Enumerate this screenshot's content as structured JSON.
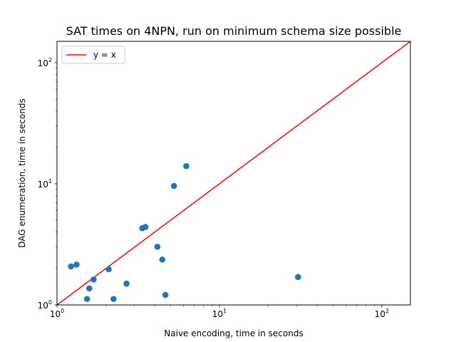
{
  "chart_data": {
    "type": "scatter",
    "title": "SAT times on 4NPN, run on minimum schema size possible",
    "xlabel": "Naive encoding, time in seconds",
    "ylabel": "DAG enumeration, time in seconds",
    "xscale": "log",
    "yscale": "log",
    "xlim": [
      1,
      150
    ],
    "ylim": [
      1,
      150
    ],
    "grid": false,
    "legend_position": "top-left",
    "x_major_ticks": [
      {
        "value": 1,
        "base": "10",
        "exp": "0"
      },
      {
        "value": 10,
        "base": "10",
        "exp": "1"
      },
      {
        "value": 100,
        "base": "10",
        "exp": "2"
      }
    ],
    "y_major_ticks": [
      {
        "value": 1,
        "base": "10",
        "exp": "0"
      },
      {
        "value": 10,
        "base": "10",
        "exp": "1"
      },
      {
        "value": 100,
        "base": "10",
        "exp": "2"
      }
    ],
    "series": [
      {
        "kind": "scatter",
        "color": "#1f77b4",
        "points": [
          {
            "x": 1.22,
            "y": 2.08
          },
          {
            "x": 1.32,
            "y": 2.15
          },
          {
            "x": 1.53,
            "y": 1.12
          },
          {
            "x": 1.58,
            "y": 1.37
          },
          {
            "x": 1.68,
            "y": 1.62
          },
          {
            "x": 2.08,
            "y": 1.97
          },
          {
            "x": 2.23,
            "y": 1.12
          },
          {
            "x": 2.68,
            "y": 1.5
          },
          {
            "x": 3.35,
            "y": 4.3
          },
          {
            "x": 3.5,
            "y": 4.4
          },
          {
            "x": 4.15,
            "y": 3.02
          },
          {
            "x": 4.45,
            "y": 2.37
          },
          {
            "x": 4.65,
            "y": 1.21
          },
          {
            "x": 5.25,
            "y": 9.6
          },
          {
            "x": 6.25,
            "y": 14.0
          },
          {
            "x": 30.5,
            "y": 1.7
          }
        ]
      },
      {
        "kind": "line",
        "name": "y = x",
        "color": "#ff0000",
        "points": [
          {
            "x": 1,
            "y": 1
          },
          {
            "x": 150,
            "y": 150
          }
        ]
      }
    ]
  }
}
